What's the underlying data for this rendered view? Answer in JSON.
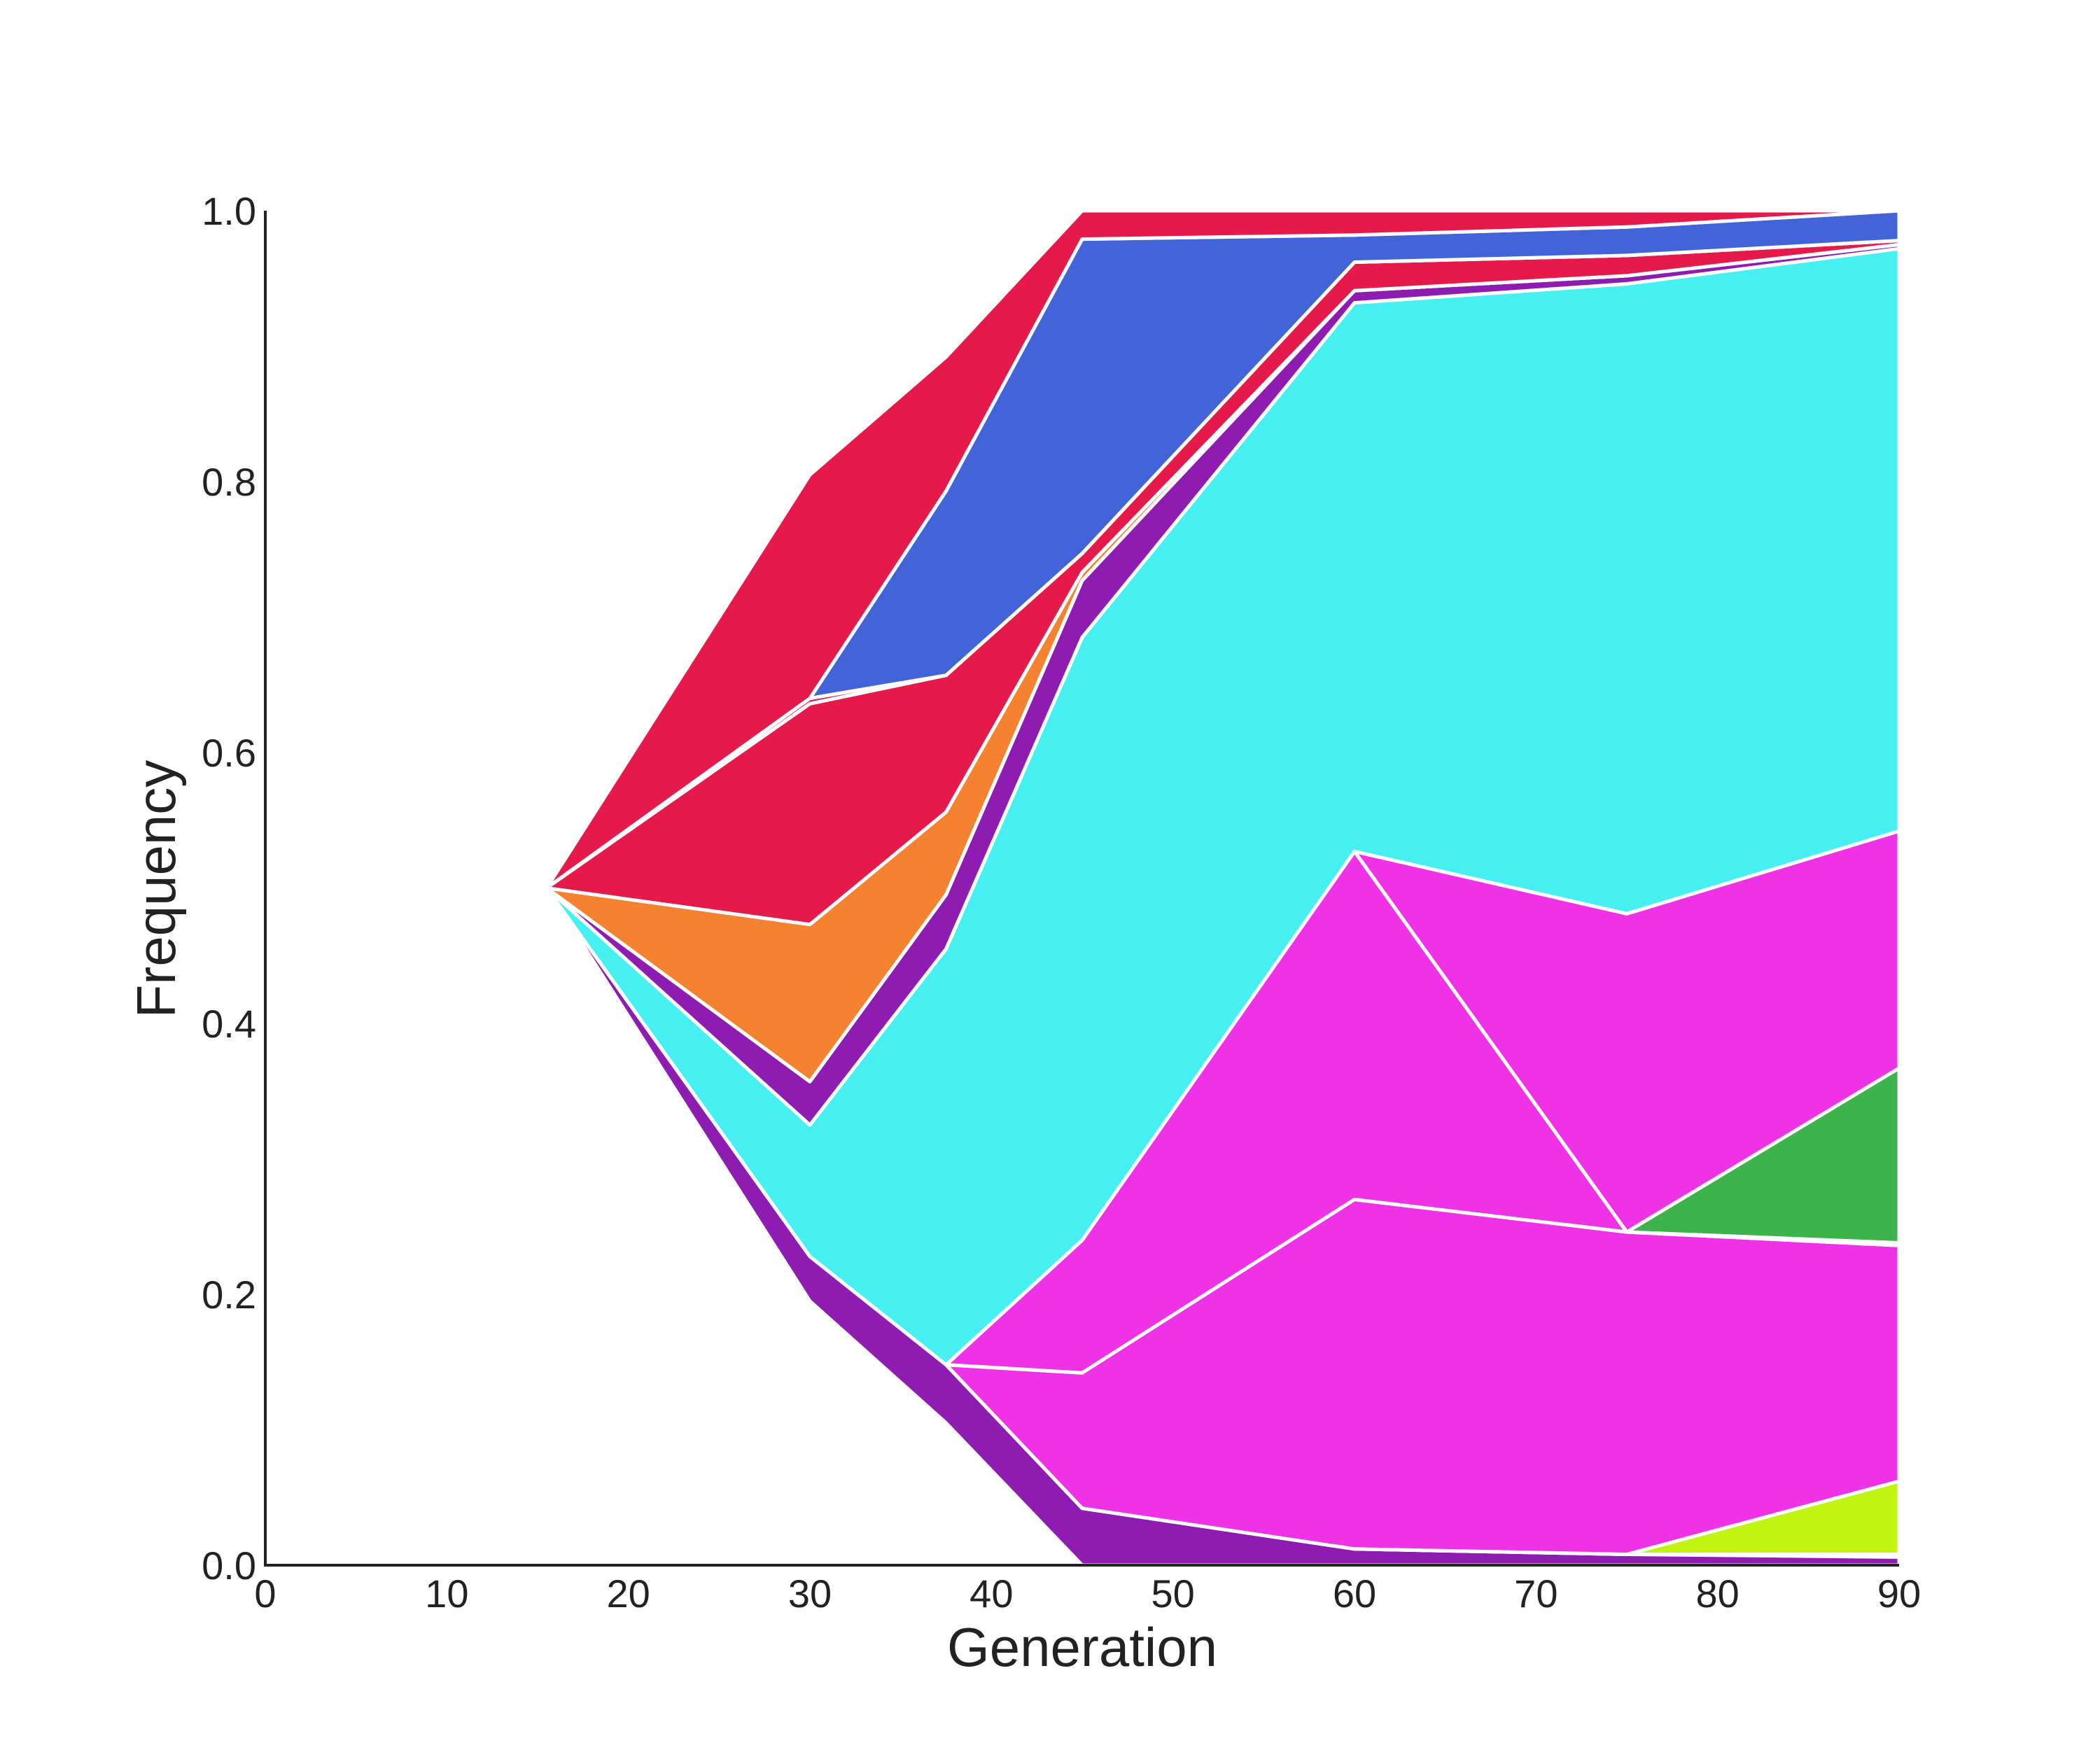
{
  "chart_data": {
    "type": "area",
    "xlabel": "Generation",
    "ylabel": "Frequency",
    "xlim": [
      0,
      90
    ],
    "ylim": [
      0,
      1
    ],
    "xticks": [
      "0",
      "10",
      "20",
      "30",
      "40",
      "50",
      "60",
      "70",
      "80",
      "90"
    ],
    "yticks": [
      "0.0",
      "0.2",
      "0.4",
      "0.6",
      "0.8",
      "1.0"
    ],
    "grid": false,
    "legend": "none",
    "x": [
      15.5,
      30,
      37.5,
      45,
      60,
      75,
      90
    ],
    "bands": [
      {
        "color": "#8E1CB0",
        "lower": [
          0.5,
          0.195,
          0.105,
          0.0,
          0.0,
          0.0,
          0.0
        ],
        "upper": [
          0.5,
          0.228,
          0.148,
          0.042,
          0.012,
          0.008,
          0.006
        ]
      },
      {
        "color": "#C1F511",
        "lower": [
          0.5,
          0.228,
          0.148,
          0.042,
          0.012,
          0.008,
          0.008
        ],
        "upper": [
          0.5,
          0.228,
          0.148,
          0.042,
          0.012,
          0.008,
          0.062
        ]
      },
      {
        "color": "#F032E6",
        "lower": [
          0.5,
          0.228,
          0.148,
          0.042,
          0.012,
          0.008,
          0.062
        ],
        "upper": [
          0.5,
          0.228,
          0.148,
          0.142,
          0.27,
          0.246,
          0.236
        ]
      },
      {
        "color": "#F032E6",
        "lower": [
          0.5,
          0.228,
          0.148,
          0.142,
          0.27,
          0.246,
          0.236
        ],
        "upper": [
          0.5,
          0.228,
          0.148,
          0.24,
          0.527,
          0.246,
          0.238
        ]
      },
      {
        "color": "#3CB44B",
        "lower": [
          0.5,
          0.228,
          0.148,
          0.24,
          0.527,
          0.246,
          0.238
        ],
        "upper": [
          0.5,
          0.228,
          0.148,
          0.24,
          0.527,
          0.246,
          0.367
        ]
      },
      {
        "color": "#F032E6",
        "lower": [
          0.5,
          0.228,
          0.148,
          0.24,
          0.527,
          0.246,
          0.367
        ],
        "upper": [
          0.5,
          0.228,
          0.148,
          0.24,
          0.527,
          0.481,
          0.542
        ]
      },
      {
        "color": "#46F0F0",
        "lower": [
          0.5,
          0.228,
          0.148,
          0.24,
          0.527,
          0.481,
          0.542
        ],
        "upper": [
          0.5,
          0.325,
          0.455,
          0.685,
          0.932,
          0.946,
          0.972
        ]
      },
      {
        "color": "#8E1CB0",
        "lower": [
          0.5,
          0.325,
          0.455,
          0.685,
          0.932,
          0.946,
          0.972
        ],
        "upper": [
          0.5,
          0.357,
          0.495,
          0.727,
          0.941,
          0.952,
          0.975
        ]
      },
      {
        "color": "#F58231",
        "lower": [
          0.5,
          0.357,
          0.495,
          0.727,
          0.941,
          0.952,
          0.975
        ],
        "upper": [
          0.5,
          0.473,
          0.556,
          0.733,
          0.941,
          0.952,
          0.975
        ]
      },
      {
        "color": "#E6194B",
        "lower": [
          0.5,
          0.473,
          0.556,
          0.733,
          0.941,
          0.952,
          0.975
        ],
        "upper": [
          0.5,
          0.636,
          0.657,
          0.747,
          0.962,
          0.967,
          0.978
        ]
      },
      {
        "color": "#E6194B",
        "lower": [
          0.5,
          0.636,
          0.657,
          0.747,
          0.962,
          0.967,
          0.978
        ],
        "upper": [
          0.5,
          0.64,
          0.657,
          0.747,
          0.962,
          0.967,
          0.978
        ]
      },
      {
        "color": "#4363D8",
        "lower": [
          0.5,
          0.64,
          0.657,
          0.747,
          0.962,
          0.967,
          0.978
        ],
        "upper": [
          0.5,
          0.64,
          0.793,
          0.979,
          0.982,
          0.988,
          1.0
        ]
      },
      {
        "color": "#E6194B",
        "lower": [
          0.5,
          0.64,
          0.793,
          0.979,
          0.982,
          0.988,
          1.0
        ],
        "upper": [
          0.5,
          0.805,
          0.892,
          1.0,
          1.0,
          1.0,
          1.0
        ]
      }
    ]
  }
}
